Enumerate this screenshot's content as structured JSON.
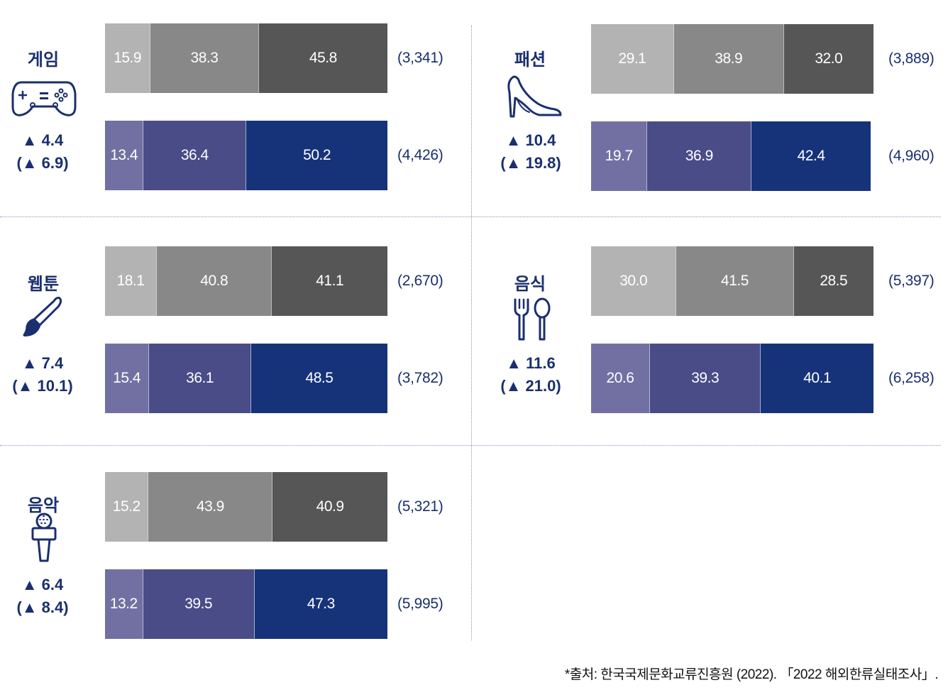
{
  "chart_data": {
    "type": "bar",
    "orientation": "horizontal-stacked-100",
    "colors": {
      "row1": [
        "#b3b3b3",
        "#888888",
        "#575657"
      ],
      "row2": [
        "#7270a3",
        "#4a4c88",
        "#16337a"
      ],
      "text": "#1a2f6e"
    },
    "panels": [
      {
        "category": "게임",
        "icon": "gamepad-icon",
        "delta": "▲ 4.4",
        "delta_prev": "(▲ 6.9)",
        "rows": [
          {
            "values": [
              15.9,
              38.3,
              45.8
            ],
            "labels": [
              "15.9",
              "38.3",
              "45.8"
            ],
            "total": "(3,341)"
          },
          {
            "values": [
              13.4,
              36.4,
              50.2
            ],
            "labels": [
              "13.4",
              "36.4",
              "50.2"
            ],
            "total": "(4,426)"
          }
        ]
      },
      {
        "category": "패션",
        "icon": "high-heel-icon",
        "delta": "▲ 10.4",
        "delta_prev": "(▲ 19.8)",
        "rows": [
          {
            "values": [
              29.1,
              38.9,
              32.0
            ],
            "labels": [
              "29.1",
              "38.9",
              "32.0"
            ],
            "total": "(3,889)"
          },
          {
            "values": [
              19.7,
              36.9,
              42.4
            ],
            "labels": [
              "19.7",
              "36.9",
              "42.4"
            ],
            "total": "(4,960)"
          }
        ]
      },
      {
        "category": "웹툰",
        "icon": "paintbrush-icon",
        "delta": "▲ 7.4",
        "delta_prev": "(▲ 10.1)",
        "rows": [
          {
            "values": [
              18.1,
              40.8,
              41.1
            ],
            "labels": [
              "18.1",
              "40.8",
              "41.1"
            ],
            "total": "(2,670)"
          },
          {
            "values": [
              15.4,
              36.1,
              48.5
            ],
            "labels": [
              "15.4",
              "36.1",
              "48.5"
            ],
            "total": "(3,782)"
          }
        ]
      },
      {
        "category": "음식",
        "icon": "fork-spoon-icon",
        "delta": "▲ 11.6",
        "delta_prev": "(▲ 21.0)",
        "rows": [
          {
            "values": [
              30.0,
              41.5,
              28.5
            ],
            "labels": [
              "30.0",
              "41.5",
              "28.5"
            ],
            "total": "(5,397)"
          },
          {
            "values": [
              20.6,
              39.3,
              40.1
            ],
            "labels": [
              "20.6",
              "39.3",
              "40.1"
            ],
            "total": "(6,258)"
          }
        ]
      },
      {
        "category": "음악",
        "icon": "microphone-icon",
        "delta": "▲ 6.4",
        "delta_prev": "(▲ 8.4)",
        "rows": [
          {
            "values": [
              15.2,
              43.9,
              40.9
            ],
            "labels": [
              "15.2",
              "43.9",
              "40.9"
            ],
            "total": "(5,321)"
          },
          {
            "values": [
              13.2,
              39.5,
              47.3
            ],
            "labels": [
              "13.2",
              "39.5",
              "47.3"
            ],
            "total": "(5,995)"
          }
        ]
      }
    ]
  },
  "source": "*출처: 한국국제문화교류진흥원 (2022). 「2022 해외한류실태조사」."
}
